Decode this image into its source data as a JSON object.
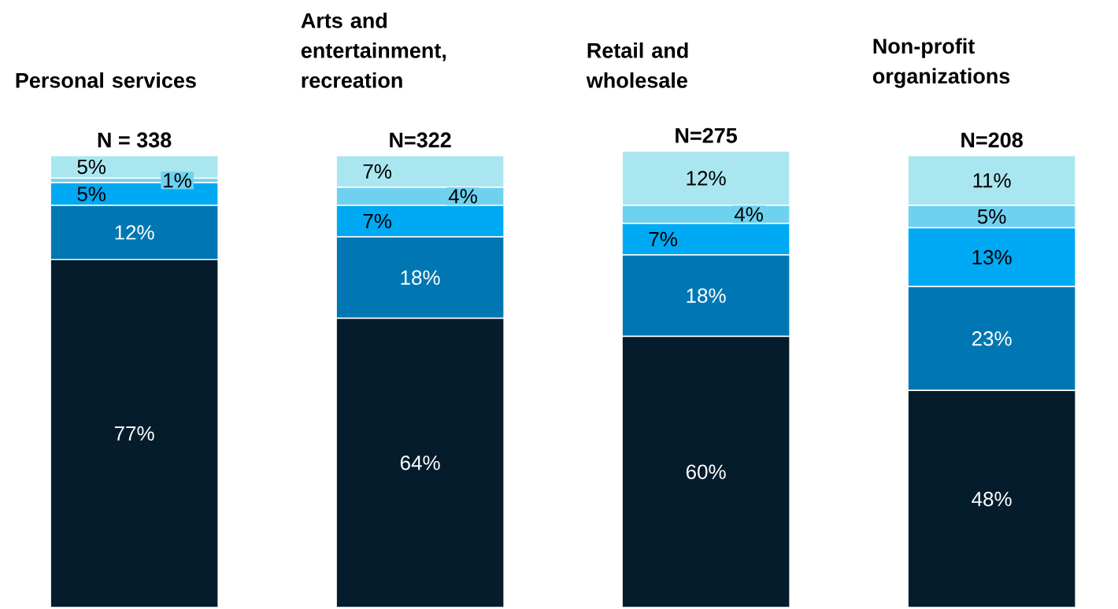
{
  "chart_data": {
    "type": "bar",
    "stacked": true,
    "categories": [
      "Personal services",
      "Arts and entertainment, recreation",
      "Retail and wholesale",
      "Non-profit organizations"
    ],
    "series": [
      {
        "color": "#051c2c",
        "values": [
          77,
          64,
          60,
          48
        ],
        "value_labels": [
          "77%",
          "64%",
          "60%",
          "48%"
        ]
      },
      {
        "color": "#0077b3",
        "values": [
          12,
          18,
          18,
          23
        ],
        "value_labels": [
          "12%",
          "18%",
          "18%",
          "23%"
        ]
      },
      {
        "color": "#00a9f4",
        "values": [
          5,
          7,
          7,
          13
        ],
        "value_labels": [
          "5%",
          "7%",
          "7%",
          "13%"
        ]
      },
      {
        "color": "#6fd1f0",
        "values": [
          1,
          4,
          4,
          5
        ],
        "value_labels": [
          "1%",
          "4%",
          "4%",
          "5%"
        ]
      },
      {
        "color": "#aae6f0",
        "values": [
          5,
          7,
          12,
          11
        ],
        "value_labels": [
          "5%",
          "7%",
          "12%",
          "11%"
        ]
      }
    ],
    "annotations": [
      "N = 338",
      "N=322",
      "N=275",
      "N=208"
    ]
  }
}
